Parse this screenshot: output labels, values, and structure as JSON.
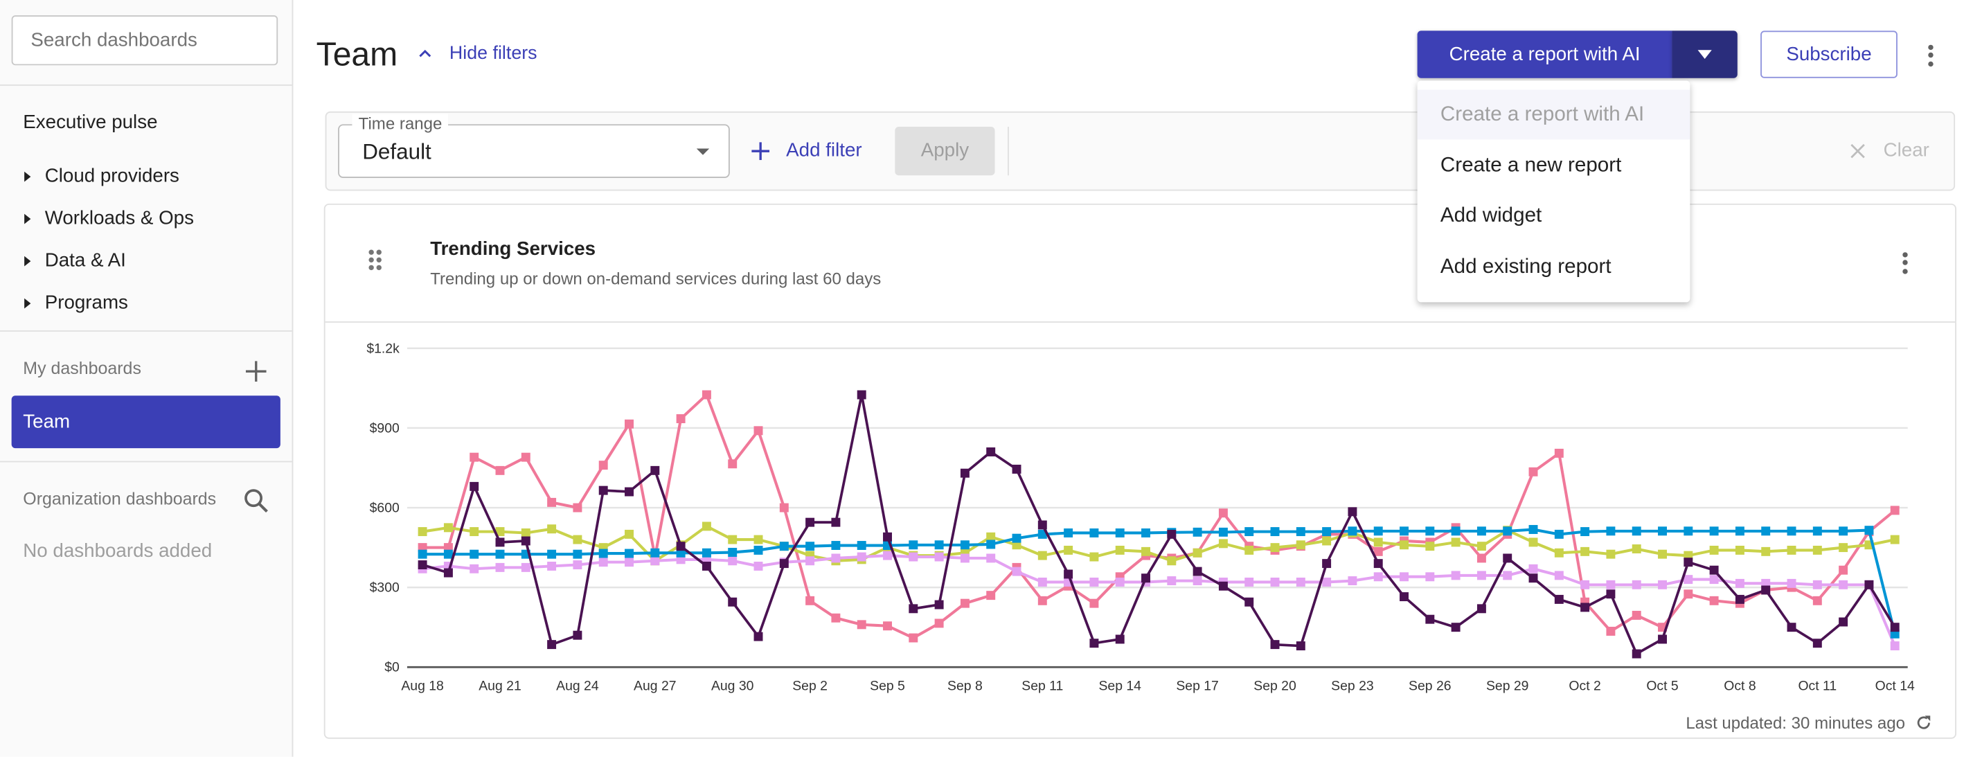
{
  "sidebar": {
    "search_placeholder": "Search dashboards",
    "executive_pulse": "Executive pulse",
    "groups": [
      {
        "label": "Cloud providers"
      },
      {
        "label": "Workloads & Ops"
      },
      {
        "label": "Data & AI"
      },
      {
        "label": "Programs"
      }
    ],
    "my_dashboards_label": "My dashboards",
    "my_dashboards": [
      {
        "label": "Team",
        "selected": true
      }
    ],
    "org_dashboards_label": "Organization dashboards",
    "org_empty": "No dashboards added"
  },
  "header": {
    "title": "Team",
    "hide_filters": "Hide filters",
    "create_ai_button": "Create a report with AI",
    "subscribe_button": "Subscribe",
    "accent_color": "#3d40b5"
  },
  "create_menu": {
    "items": [
      {
        "label": "Create a report with AI",
        "disabled": true
      },
      {
        "label": "Create a new report"
      },
      {
        "label": "Add widget"
      },
      {
        "label": "Add existing report"
      }
    ]
  },
  "filters": {
    "time_range_label": "Time range",
    "time_range_value": "Default",
    "add_filter": "Add filter",
    "apply": "Apply",
    "clear": "Clear"
  },
  "widget": {
    "title": "Trending Services",
    "subtitle": "Trending up or down on-demand services during last 60 days",
    "last_updated": "Last updated: 30 minutes ago"
  },
  "chart_data": {
    "type": "line",
    "title": "",
    "xlabel": "",
    "ylabel": "",
    "ylim": [
      0,
      1200
    ],
    "y_ticks": [
      "$0",
      "$300",
      "$600",
      "$900",
      "$1.2k"
    ],
    "y_tick_values": [
      0,
      300,
      600,
      900,
      1200
    ],
    "x_start": "Aug 18",
    "x_end": "Oct 14",
    "x_tick_labels": [
      "Aug 18",
      "Aug 21",
      "Aug 24",
      "Aug 27",
      "Aug 30",
      "Sep 2",
      "Sep 5",
      "Sep 8",
      "Sep 11",
      "Sep 14",
      "Sep 17",
      "Sep 20",
      "Sep 23",
      "Sep 26",
      "Sep 29",
      "Oct 2",
      "Oct 5",
      "Oct 8",
      "Oct 11",
      "Oct 14"
    ],
    "grid": true,
    "legend": "none",
    "marker": "square",
    "series": [
      {
        "color": "#f07899",
        "values": [
          450,
          450,
          790,
          740,
          790,
          620,
          600,
          760,
          915,
          415,
          935,
          1025,
          765,
          890,
          600,
          250,
          185,
          160,
          155,
          110,
          165,
          240,
          270,
          375,
          250,
          305,
          240,
          340,
          420,
          410,
          430,
          580,
          455,
          440,
          455,
          500,
          500,
          435,
          475,
          470,
          525,
          410,
          500,
          735,
          805,
          245,
          135,
          195,
          150,
          275,
          250,
          240,
          290,
          300,
          250,
          365,
          510,
          590
        ]
      },
      {
        "color": "#c9d24a",
        "values": [
          510,
          525,
          510,
          510,
          505,
          520,
          480,
          450,
          500,
          400,
          460,
          530,
          480,
          480,
          455,
          420,
          400,
          405,
          450,
          420,
          420,
          430,
          490,
          460,
          420,
          440,
          415,
          440,
          435,
          400,
          430,
          465,
          440,
          450,
          460,
          475,
          505,
          470,
          460,
          455,
          470,
          455,
          515,
          470,
          430,
          435,
          425,
          445,
          425,
          420,
          440,
          440,
          435,
          440,
          440,
          450,
          460,
          480
        ]
      },
      {
        "color": "#e3a1f2",
        "values": [
          370,
          380,
          370,
          375,
          375,
          380,
          385,
          395,
          395,
          400,
          405,
          405,
          400,
          380,
          395,
          400,
          410,
          415,
          420,
          415,
          415,
          410,
          410,
          360,
          320,
          320,
          320,
          320,
          320,
          325,
          325,
          320,
          320,
          320,
          320,
          320,
          325,
          340,
          340,
          340,
          345,
          345,
          345,
          370,
          345,
          310,
          310,
          310,
          310,
          330,
          330,
          315,
          315,
          315,
          310,
          310,
          310,
          80
        ]
      },
      {
        "color": "#0095d5",
        "values": [
          425,
          425,
          425,
          425,
          425,
          425,
          425,
          428,
          428,
          430,
          430,
          430,
          432,
          440,
          455,
          455,
          458,
          458,
          458,
          460,
          460,
          460,
          462,
          485,
          500,
          505,
          505,
          505,
          505,
          507,
          508,
          508,
          510,
          510,
          510,
          510,
          512,
          512,
          512,
          512,
          512,
          512,
          512,
          518,
          500,
          510,
          512,
          512,
          512,
          512,
          512,
          512,
          512,
          512,
          512,
          512,
          515,
          125
        ]
      },
      {
        "color": "#4a1252",
        "values": [
          385,
          355,
          680,
          470,
          475,
          85,
          120,
          665,
          660,
          740,
          455,
          380,
          245,
          115,
          390,
          545,
          545,
          1025,
          490,
          220,
          235,
          730,
          810,
          745,
          535,
          350,
          90,
          105,
          335,
          500,
          360,
          305,
          245,
          85,
          80,
          390,
          585,
          390,
          265,
          180,
          150,
          220,
          410,
          335,
          255,
          225,
          275,
          50,
          105,
          395,
          365,
          255,
          290,
          150,
          90,
          170,
          310,
          150
        ]
      }
    ]
  }
}
